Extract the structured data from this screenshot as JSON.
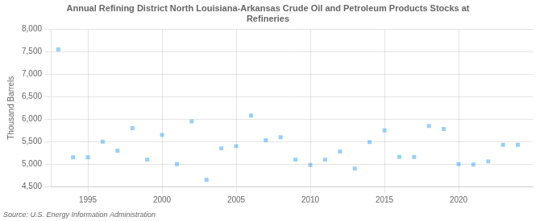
{
  "chart_data": {
    "type": "scatter",
    "title": "Annual Refining District North Louisiana-Arkansas Crude Oil and Petroleum Products Stocks at\nRefineries",
    "y_label": "Thousand Barrels",
    "annotations": [
      "Source: U.S. Energy Information Administration"
    ],
    "marker": "square",
    "grid": true,
    "xlim": [
      1992.5,
      2025
    ],
    "ylim": [
      4500,
      8000
    ],
    "xticks": [
      1995,
      2000,
      2005,
      2010,
      2015,
      2020
    ],
    "yticks": [
      {
        "value": 4500,
        "label": "4,500"
      },
      {
        "value": 5000,
        "label": "5,000"
      },
      {
        "value": 5500,
        "label": "5,500"
      },
      {
        "value": 6000,
        "label": "6,000"
      },
      {
        "value": 6500,
        "label": "6,500"
      },
      {
        "value": 7000,
        "label": "7,000"
      },
      {
        "value": 7500,
        "label": "7,500"
      },
      {
        "value": 8000,
        "label": "8,000"
      }
    ],
    "x": [
      1993,
      1994,
      1995,
      1996,
      1997,
      1998,
      1999,
      2000,
      2001,
      2002,
      2003,
      2004,
      2005,
      2006,
      2007,
      2008,
      2009,
      2010,
      2011,
      2012,
      2013,
      2014,
      2015,
      2016,
      2017,
      2018,
      2019,
      2020,
      2021,
      2022,
      2023,
      2024
    ],
    "values": [
      7550,
      5150,
      5150,
      5500,
      5300,
      5800,
      5100,
      5650,
      5000,
      5950,
      4650,
      5350,
      5400,
      6080,
      5530,
      5600,
      5100,
      4980,
      5100,
      5280,
      4900,
      5490,
      5750,
      5160,
      5160,
      5850,
      5780,
      5000,
      4990,
      5060,
      5430,
      5430
    ]
  }
}
